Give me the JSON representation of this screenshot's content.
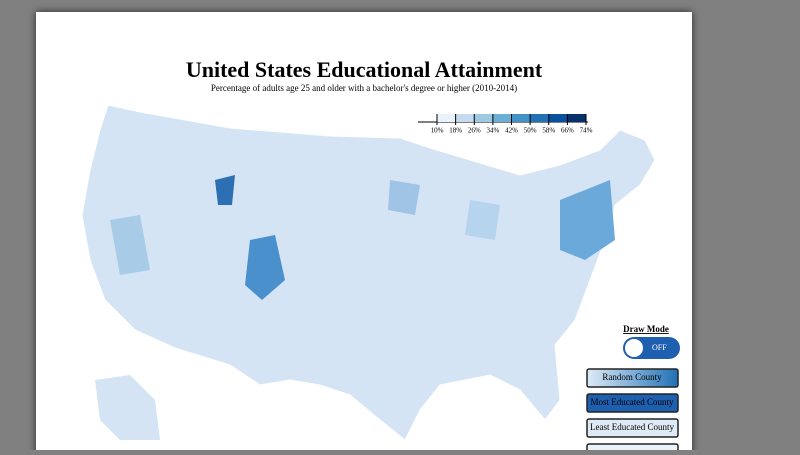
{
  "header": {
    "title": "United States Educational Attainment",
    "subtitle": "Percentage of adults age 25 and older with a bachelor's degree or higher (2010-2014)"
  },
  "legend": {
    "ticks": [
      {
        "value": 10,
        "label": "10%"
      },
      {
        "value": 18,
        "label": "18%"
      },
      {
        "value": 26,
        "label": "26%"
      },
      {
        "value": 34,
        "label": "34%"
      },
      {
        "value": 42,
        "label": "42%"
      },
      {
        "value": 50,
        "label": "50%"
      },
      {
        "value": 58,
        "label": "58%"
      },
      {
        "value": 66,
        "label": "66%"
      },
      {
        "value": 74,
        "label": "74%"
      }
    ],
    "colors": [
      "#eaf2fb",
      "#c6dbef",
      "#9ecae1",
      "#6baed6",
      "#4292c6",
      "#2171b5",
      "#08519c",
      "#08306b"
    ]
  },
  "controls": {
    "draw_mode_label": "Draw Mode",
    "toggle_state": "OFF",
    "buttons": [
      "Random County",
      "Most Educated County",
      "Least Educated County"
    ]
  }
}
